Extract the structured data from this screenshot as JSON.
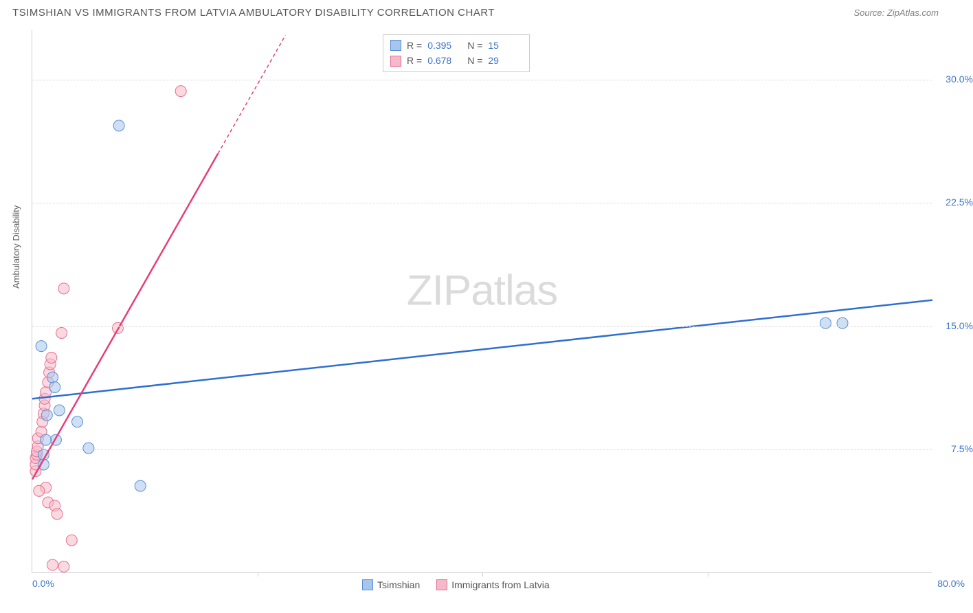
{
  "header": {
    "title": "TSIMSHIAN VS IMMIGRANTS FROM LATVIA AMBULATORY DISABILITY CORRELATION CHART",
    "source": "Source: ZipAtlas.com"
  },
  "axis": {
    "ylabel": "Ambulatory Disability",
    "x_min": 0.0,
    "x_max": 80.0,
    "x_min_label": "0.0%",
    "x_max_label": "80.0%",
    "y_min": 0.0,
    "y_max": 33.0,
    "y_ticks": [
      {
        "v": 7.5,
        "label": "7.5%"
      },
      {
        "v": 15.0,
        "label": "15.0%"
      },
      {
        "v": 22.5,
        "label": "22.5%"
      },
      {
        "v": 30.0,
        "label": "30.0%"
      }
    ],
    "x_tick_marks": [
      20.0,
      40.0,
      60.0
    ]
  },
  "watermark": {
    "zip": "ZIP",
    "atlas": "atlas"
  },
  "series": {
    "tsimshian": {
      "label": "Tsimshian",
      "fill": "#a7c6ed",
      "stroke": "#5a8fd6",
      "line_color": "#2f6fd0",
      "marker_r": 8,
      "R_label": "R = ",
      "R_value": "0.395",
      "N_label": "N = ",
      "N_value": "15",
      "points": [
        {
          "x": 0.8,
          "y": 13.8
        },
        {
          "x": 1.8,
          "y": 11.9
        },
        {
          "x": 2.0,
          "y": 11.3
        },
        {
          "x": 2.4,
          "y": 9.9
        },
        {
          "x": 4.0,
          "y": 9.2
        },
        {
          "x": 2.1,
          "y": 8.1
        },
        {
          "x": 1.2,
          "y": 8.1
        },
        {
          "x": 5.0,
          "y": 7.6
        },
        {
          "x": 9.6,
          "y": 5.3
        },
        {
          "x": 7.7,
          "y": 27.2
        },
        {
          "x": 1.0,
          "y": 7.2
        },
        {
          "x": 1.0,
          "y": 6.6
        },
        {
          "x": 70.5,
          "y": 15.2
        },
        {
          "x": 72.0,
          "y": 15.2
        },
        {
          "x": 1.3,
          "y": 9.6
        }
      ],
      "trend_start": {
        "x": 0.0,
        "y": 10.6
      },
      "trend_end": {
        "x": 80.0,
        "y": 16.6
      }
    },
    "latvia": {
      "label": "Immigrants from Latvia",
      "fill": "#f6b9c9",
      "stroke": "#e76f94",
      "line_color": "#e83e78",
      "marker_r": 8,
      "R_label": "R = ",
      "R_value": "0.678",
      "N_label": "N = ",
      "N_value": "29",
      "points": [
        {
          "x": 0.3,
          "y": 6.2
        },
        {
          "x": 0.3,
          "y": 6.6
        },
        {
          "x": 0.3,
          "y": 7.0
        },
        {
          "x": 0.4,
          "y": 7.2
        },
        {
          "x": 0.4,
          "y": 7.4
        },
        {
          "x": 0.5,
          "y": 7.7
        },
        {
          "x": 0.5,
          "y": 8.2
        },
        {
          "x": 0.8,
          "y": 8.6
        },
        {
          "x": 0.9,
          "y": 9.2
        },
        {
          "x": 1.0,
          "y": 9.7
        },
        {
          "x": 1.1,
          "y": 10.2
        },
        {
          "x": 1.1,
          "y": 10.6
        },
        {
          "x": 1.2,
          "y": 11.0
        },
        {
          "x": 1.4,
          "y": 11.6
        },
        {
          "x": 1.5,
          "y": 12.2
        },
        {
          "x": 1.6,
          "y": 12.7
        },
        {
          "x": 1.7,
          "y": 13.1
        },
        {
          "x": 2.6,
          "y": 14.6
        },
        {
          "x": 2.8,
          "y": 17.3
        },
        {
          "x": 7.6,
          "y": 14.9
        },
        {
          "x": 13.2,
          "y": 29.3
        },
        {
          "x": 1.2,
          "y": 5.2
        },
        {
          "x": 1.4,
          "y": 4.3
        },
        {
          "x": 2.0,
          "y": 4.1
        },
        {
          "x": 2.2,
          "y": 3.6
        },
        {
          "x": 3.5,
          "y": 2.0
        },
        {
          "x": 2.8,
          "y": 0.4
        },
        {
          "x": 1.8,
          "y": 0.5
        },
        {
          "x": 0.6,
          "y": 5.0
        }
      ],
      "trend_start": {
        "x": 0.0,
        "y": 5.7
      },
      "trend_solid_end": {
        "x": 16.5,
        "y": 25.5
      },
      "trend_dash_end": {
        "x": 22.5,
        "y": 32.7
      }
    }
  },
  "style": {
    "background": "#ffffff",
    "grid_color": "#dddddd",
    "axis_color": "#cccccc",
    "tick_color": "#3b74c6",
    "trend_width": 2.5
  }
}
